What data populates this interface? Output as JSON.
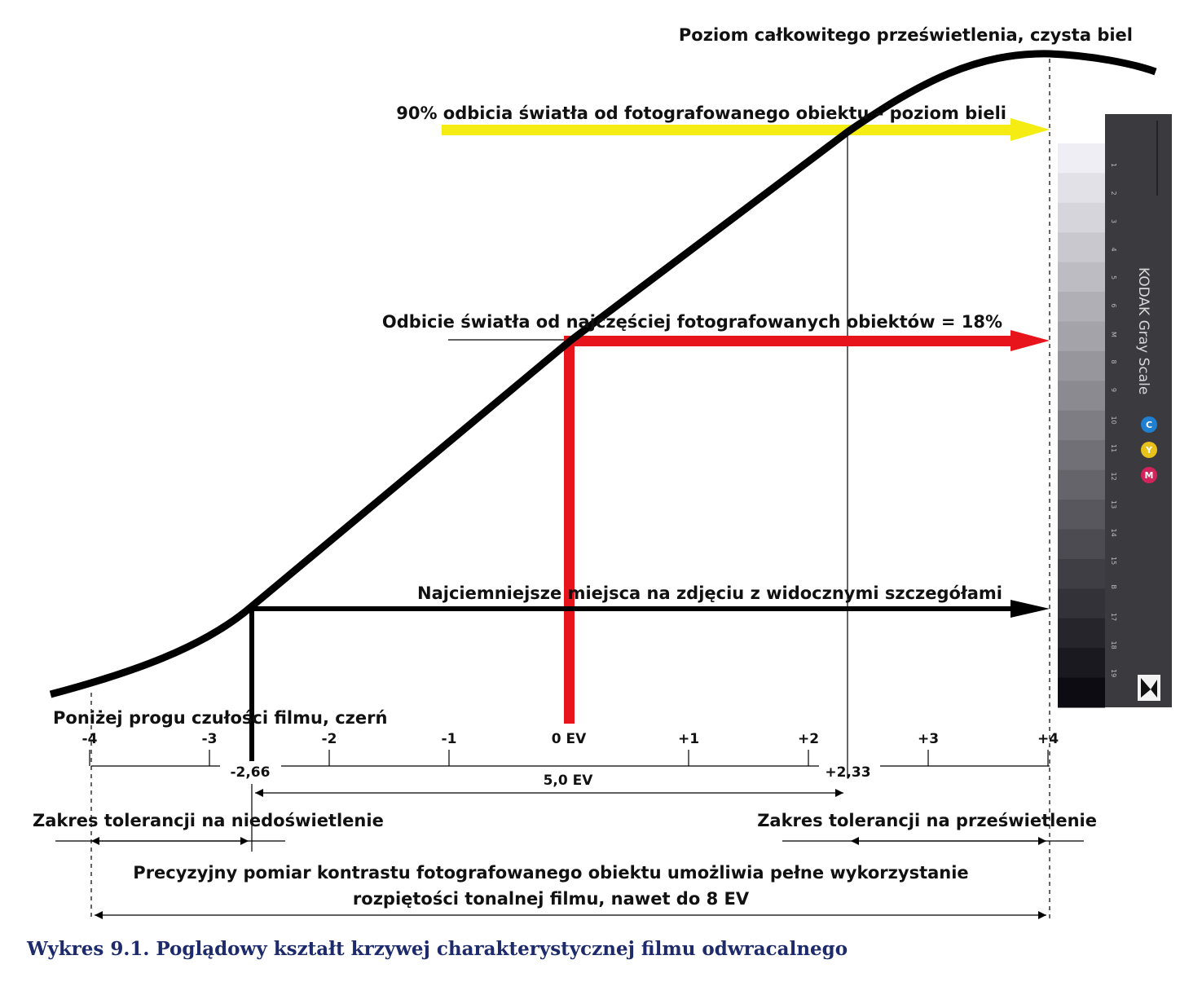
{
  "labels": {
    "top": "Poziom całkowitego prześwietlenia, czysta biel",
    "yellow": "90% odbicia światła od fotografowanego obiektu – poziom bieli",
    "red": "Odbicie światła od najczęściej fotografowanych obiektów = 18%",
    "black": "Najciemniejsze miejsca na zdjęciu z widocznymi szczegółami",
    "below": "Poniżej progu czułości filmu, czerń",
    "under_range": "Zakres tolerancji na niedoświetlenie",
    "over_range": "Zakres tolerancji na prześwietlenie",
    "precision_line1": "Precyzyjny pomiar kontrastu fotografowanego obiektu umożliwia pełne wykorzystanie",
    "precision_line2": "rozpiętości tonalnej filmu, nawet do 8 EV",
    "caption": "Wykres 9.1. Poglądowy kształt krzywej charakterystycznej filmu odwracalnego"
  },
  "axis": {
    "ticks": [
      {
        "value": -4,
        "label": "-4"
      },
      {
        "value": -3,
        "label": "-3"
      },
      {
        "value": -2,
        "label": "-2"
      },
      {
        "value": -1,
        "label": "-1"
      },
      {
        "value": 0,
        "label": "0 EV"
      },
      {
        "value": 1,
        "label": "+1"
      },
      {
        "value": 2,
        "label": "+2"
      },
      {
        "value": 3,
        "label": "+3"
      },
      {
        "value": 4,
        "label": "+4"
      }
    ],
    "markers": [
      {
        "value": -2.66,
        "label": "-2,66"
      },
      {
        "value": 2.33,
        "label": "+2,33"
      }
    ],
    "span_label": "5,0 EV"
  },
  "gray_scale": {
    "title": "KODAK Gray Scale",
    "numbers": [
      "1",
      "2",
      "3",
      "4",
      "5",
      "6",
      "M",
      "8",
      "9",
      "10",
      "11",
      "12",
      "13",
      "14",
      "15",
      "B",
      "17",
      "18",
      "19"
    ],
    "cym": [
      {
        "letter": "C",
        "color": "#1f7fd0"
      },
      {
        "letter": "Y",
        "color": "#e8c21a"
      },
      {
        "letter": "M",
        "color": "#d2235a"
      }
    ]
  },
  "colors": {
    "yellow_arrow": "#f4ec12",
    "red_arrow": "#e8141b",
    "curve": "#000000",
    "caption": "#1d2a6b"
  }
}
